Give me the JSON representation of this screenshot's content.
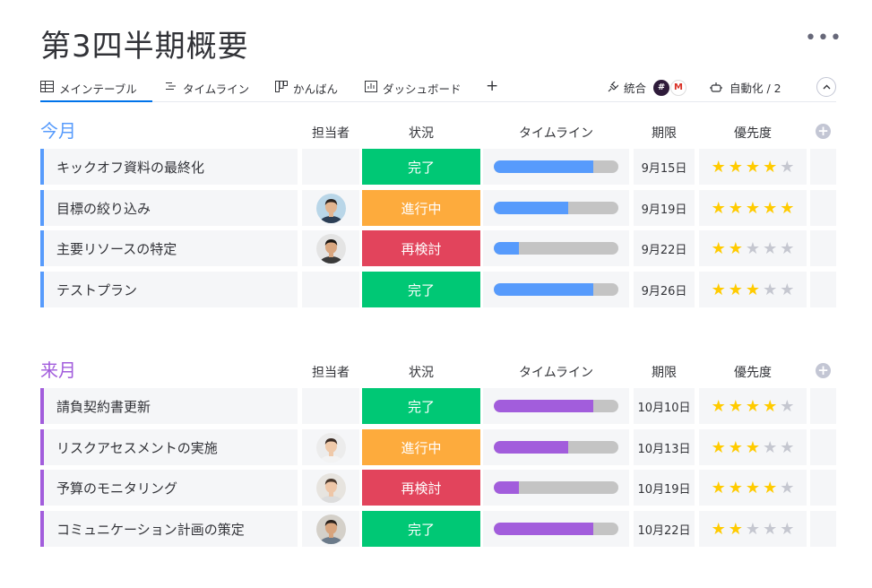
{
  "board": {
    "title": "第3四半期概要",
    "more_icon": "•••"
  },
  "tabs": [
    {
      "label": "メインテーブル",
      "icon": "table-icon",
      "active": true
    },
    {
      "label": "タイムライン",
      "icon": "timeline-icon",
      "active": false
    },
    {
      "label": "かんばん",
      "icon": "kanban-icon",
      "active": false
    },
    {
      "label": "ダッシュボード",
      "icon": "dashboard-icon",
      "active": false
    }
  ],
  "toolbar": {
    "add_view": "+",
    "integrate_label": "統合",
    "automate_label": "自動化 / 2"
  },
  "columns": {
    "person": "担当者",
    "status": "状況",
    "timeline": "タイムライン",
    "date": "期限",
    "priority": "優先度"
  },
  "colors": {
    "done": "#00c875",
    "working": "#fdab3d",
    "stuck": "#e2445c",
    "group_this_month": "#579bfc",
    "group_next_month": "#a25ddc",
    "star_on": "#ffcb00",
    "star_off": "#c5c7d0"
  },
  "groups": [
    {
      "title": "今月",
      "color": "#579bfc",
      "rows": [
        {
          "name": "キックオフ資料の最終化",
          "person": null,
          "status": "完了",
          "status_key": "done",
          "timeline_progress": 0.8,
          "date": "9月15日",
          "rating": 4
        },
        {
          "name": "目標の絞り込み",
          "person": "man-1",
          "status": "進行中",
          "status_key": "working",
          "timeline_progress": 0.6,
          "date": "9月19日",
          "rating": 5
        },
        {
          "name": "主要リソースの特定",
          "person": "man-2",
          "status": "再検討",
          "status_key": "stuck",
          "timeline_progress": 0.2,
          "date": "9月22日",
          "rating": 2
        },
        {
          "name": "テストプラン",
          "person": null,
          "status": "完了",
          "status_key": "done",
          "timeline_progress": 0.8,
          "date": "9月26日",
          "rating": 3
        }
      ]
    },
    {
      "title": "来月",
      "color": "#a25ddc",
      "rows": [
        {
          "name": "請負契約書更新",
          "person": null,
          "status": "完了",
          "status_key": "done",
          "timeline_progress": 0.8,
          "date": "10月10日",
          "rating": 4
        },
        {
          "name": "リスクアセスメントの実施",
          "person": "woman-1",
          "status": "進行中",
          "status_key": "working",
          "timeline_progress": 0.6,
          "date": "10月13日",
          "rating": 3
        },
        {
          "name": "予算のモニタリング",
          "person": "woman-2",
          "status": "再検討",
          "status_key": "stuck",
          "timeline_progress": 0.2,
          "date": "10月19日",
          "rating": 4
        },
        {
          "name": "コミュニケーション計画の策定",
          "person": "man-3",
          "status": "完了",
          "status_key": "done",
          "timeline_progress": 0.8,
          "date": "10月22日",
          "rating": 2
        }
      ]
    }
  ]
}
